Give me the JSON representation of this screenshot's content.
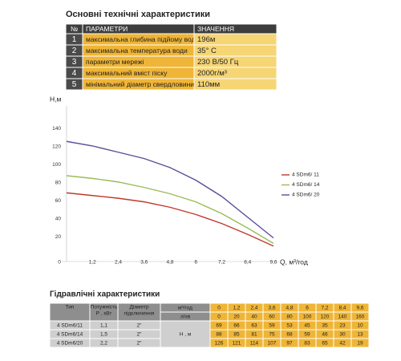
{
  "spec_title": "Основні технічні характеристики",
  "spec_table": {
    "header": [
      "№",
      "ПАРАМЕТРИ",
      "ЗНАЧЕННЯ"
    ],
    "rows": [
      [
        "1",
        "максимальна глибина підйому води",
        "196м"
      ],
      [
        "2",
        "максимальна температура води",
        "35° С"
      ],
      [
        "3",
        "параметри мережі",
        "230 В/50 Гц"
      ],
      [
        "4",
        "максимальний вміст піску",
        "2000г/м³"
      ],
      [
        "5",
        "мінімальний діаметр свердловини",
        "110мм"
      ]
    ]
  },
  "chart_data": {
    "type": "line",
    "y_label": "Н,м",
    "x_label": "Q, м³/год",
    "x": [
      0,
      1.2,
      2.4,
      3.6,
      4.8,
      6,
      7.2,
      8.4,
      9.6
    ],
    "xlim": [
      0,
      9.6
    ],
    "xticks": [
      0,
      {
        "value": 1.2,
        "label": "1,2"
      },
      {
        "value": 2.4,
        "label": "2,4"
      },
      {
        "value": 3.6,
        "label": "3,6"
      },
      {
        "value": 4.8,
        "label": "4,8"
      },
      6,
      {
        "value": 7.2,
        "label": "7,2"
      },
      {
        "value": 8.4,
        "label": "8,4"
      },
      {
        "value": 9.6,
        "label": "9,6"
      }
    ],
    "ylim": [
      0,
      150
    ],
    "yticks": [
      20,
      40,
      60,
      80,
      100,
      120,
      140
    ],
    "series": [
      {
        "name": "4 SDm6/ 11",
        "color": "#c0392b",
        "values": [
          69,
          66,
          63,
          59,
          53,
          45,
          35,
          23,
          10
        ]
      },
      {
        "name": "4 SDm6/ 14",
        "color": "#9bbb59",
        "values": [
          88,
          85,
          81,
          75,
          68,
          59,
          46,
          30,
          13
        ]
      },
      {
        "name": "4 SDm6/ 20",
        "color": "#5c4d99",
        "values": [
          126,
          121,
          114,
          107,
          97,
          83,
          65,
          42,
          19
        ]
      }
    ]
  },
  "hydraulic_title": "Гідравлічні характеристики",
  "hydraulic_table": {
    "header": {
      "type": "Тип",
      "power": [
        "Потужність",
        "Р , кВт"
      ],
      "diameter": [
        "Діаметр",
        "підключення"
      ],
      "flow_m3": "м³/год",
      "flow_lmin": "л/хв",
      "head": "Н , м"
    },
    "flow_m3": [
      "0",
      "1,2",
      "2,4",
      "3,6",
      "4,8",
      "6",
      "7,2",
      "8,4",
      "9,6"
    ],
    "flow_lmin": [
      "0",
      "20",
      "40",
      "60",
      "80",
      "100",
      "120",
      "140",
      "160"
    ],
    "rows": [
      {
        "type": "4 SDm6/11",
        "power": "1,1",
        "diameter": "2\"",
        "head": [
          "69",
          "66",
          "63",
          "59",
          "53",
          "45",
          "35",
          "23",
          "10"
        ]
      },
      {
        "type": "4 SDm6/14",
        "power": "1,5",
        "diameter": "2\"",
        "head": [
          "88",
          "85",
          "81",
          "75",
          "68",
          "59",
          "46",
          "30",
          "13"
        ]
      },
      {
        "type": "4 SDm6/20",
        "power": "2,2",
        "diameter": "2\"",
        "head": [
          "126",
          "121",
          "114",
          "107",
          "97",
          "83",
          "65",
          "42",
          "19"
        ]
      }
    ]
  }
}
